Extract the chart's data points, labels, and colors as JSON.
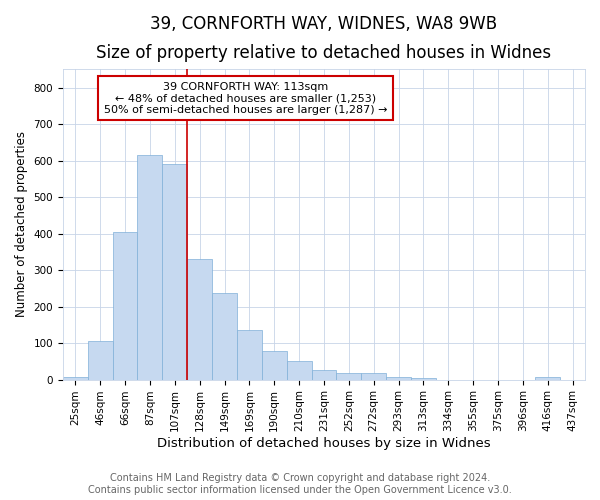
{
  "title1": "39, CORNFORTH WAY, WIDNES, WA8 9WB",
  "title2": "Size of property relative to detached houses in Widnes",
  "xlabel": "Distribution of detached houses by size in Widnes",
  "ylabel": "Number of detached properties",
  "categories": [
    "25sqm",
    "46sqm",
    "66sqm",
    "87sqm",
    "107sqm",
    "128sqm",
    "149sqm",
    "169sqm",
    "190sqm",
    "210sqm",
    "231sqm",
    "252sqm",
    "272sqm",
    "293sqm",
    "313sqm",
    "334sqm",
    "355sqm",
    "375sqm",
    "396sqm",
    "416sqm",
    "437sqm"
  ],
  "values": [
    8,
    107,
    403,
    616,
    590,
    330,
    237,
    135,
    79,
    51,
    25,
    17,
    18,
    8,
    4,
    0,
    0,
    0,
    0,
    8,
    0
  ],
  "bar_color": "#c6d9f0",
  "bar_edge_color": "#7fb0d8",
  "vline_x": 4.5,
  "vline_color": "#cc0000",
  "annotation_line1": "39 CORNFORTH WAY: 113sqm",
  "annotation_line2": "← 48% of detached houses are smaller (1,253)",
  "annotation_line3": "50% of semi-detached houses are larger (1,287) →",
  "annotation_box_color": "#ffffff",
  "annotation_box_edge": "#cc0000",
  "ylim": [
    0,
    850
  ],
  "yticks": [
    0,
    100,
    200,
    300,
    400,
    500,
    600,
    700,
    800
  ],
  "footer1": "Contains HM Land Registry data © Crown copyright and database right 2024.",
  "footer2": "Contains public sector information licensed under the Open Government Licence v3.0.",
  "bg_color": "#ffffff",
  "grid_color": "#c8d4e8",
  "title1_fontsize": 12,
  "title2_fontsize": 10,
  "xlabel_fontsize": 9.5,
  "ylabel_fontsize": 8.5,
  "tick_fontsize": 7.5,
  "annotation_fontsize": 8,
  "footer_fontsize": 7
}
